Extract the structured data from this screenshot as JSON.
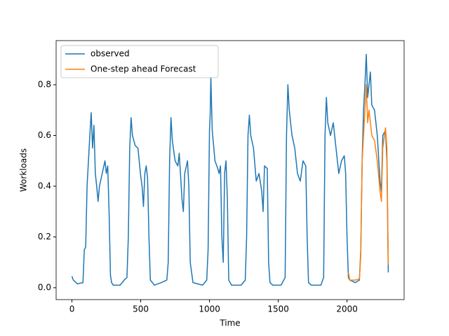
{
  "chart_data": {
    "type": "line",
    "xlabel": "Time",
    "ylabel": "Workloads",
    "xlim": [
      -115,
      2415
    ],
    "ylim": [
      -0.047,
      0.974
    ],
    "xticks": [
      0,
      500,
      1000,
      1500,
      2000
    ],
    "yticks": [
      {
        "value": 0,
        "label": "0.0"
      },
      0.2,
      0.4,
      0.6,
      0.8
    ],
    "legend": "upper left",
    "series": [
      {
        "name": "observed",
        "color": "#1f77b4",
        "x": [
          0,
          10,
          40,
          80,
          90,
          100,
          110,
          120,
          130,
          140,
          150,
          160,
          170,
          180,
          190,
          200,
          220,
          240,
          250,
          260,
          270,
          280,
          288,
          300,
          350,
          380,
          400,
          410,
          420,
          430,
          440,
          460,
          480,
          500,
          510,
          520,
          530,
          540,
          550,
          560,
          570,
          600,
          650,
          690,
          700,
          710,
          720,
          730,
          750,
          770,
          780,
          800,
          810,
          820,
          840,
          850,
          860,
          880,
          950,
          980,
          990,
          1000,
          1005,
          1010,
          1020,
          1040,
          1060,
          1070,
          1080,
          1090,
          1100,
          1110,
          1120,
          1130,
          1140,
          1160,
          1230,
          1260,
          1270,
          1280,
          1290,
          1300,
          1320,
          1340,
          1360,
          1380,
          1390,
          1400,
          1420,
          1430,
          1440,
          1460,
          1520,
          1550,
          1560,
          1570,
          1580,
          1600,
          1620,
          1640,
          1660,
          1680,
          1700,
          1710,
          1720,
          1740,
          1810,
          1830,
          1840,
          1850,
          1860,
          1880,
          1900,
          1920,
          1940,
          1960,
          1980,
          1990,
          2000,
          2010,
          2020,
          2060,
          2090,
          2100,
          2110,
          2120,
          2130,
          2140,
          2150,
          2160,
          2170,
          2180,
          2200,
          2220,
          2240,
          2250,
          2260,
          2280,
          2290,
          2300
        ],
        "values": [
          0.045,
          0.03,
          0.015,
          0.02,
          0.15,
          0.16,
          0.4,
          0.5,
          0.6,
          0.69,
          0.55,
          0.64,
          0.45,
          0.4,
          0.34,
          0.4,
          0.45,
          0.5,
          0.45,
          0.48,
          0.3,
          0.05,
          0.02,
          0.01,
          0.01,
          0.03,
          0.04,
          0.2,
          0.55,
          0.67,
          0.6,
          0.56,
          0.55,
          0.44,
          0.4,
          0.32,
          0.45,
          0.48,
          0.43,
          0.2,
          0.03,
          0.01,
          0.02,
          0.03,
          0.1,
          0.5,
          0.67,
          0.58,
          0.5,
          0.48,
          0.53,
          0.35,
          0.3,
          0.45,
          0.5,
          0.4,
          0.1,
          0.02,
          0.01,
          0.03,
          0.15,
          0.62,
          0.68,
          0.83,
          0.62,
          0.5,
          0.47,
          0.45,
          0.48,
          0.2,
          0.1,
          0.45,
          0.5,
          0.35,
          0.03,
          0.01,
          0.01,
          0.03,
          0.2,
          0.6,
          0.68,
          0.6,
          0.55,
          0.42,
          0.45,
          0.38,
          0.3,
          0.48,
          0.47,
          0.1,
          0.02,
          0.01,
          0.01,
          0.04,
          0.6,
          0.8,
          0.7,
          0.6,
          0.55,
          0.45,
          0.42,
          0.5,
          0.48,
          0.2,
          0.02,
          0.01,
          0.01,
          0.04,
          0.6,
          0.75,
          0.65,
          0.6,
          0.65,
          0.55,
          0.45,
          0.5,
          0.52,
          0.45,
          0.2,
          0.04,
          0.03,
          0.02,
          0.03,
          0.15,
          0.5,
          0.7,
          0.8,
          0.92,
          0.75,
          0.8,
          0.85,
          0.72,
          0.7,
          0.6,
          0.42,
          0.38,
          0.6,
          0.62,
          0.5,
          0.06
        ]
      },
      {
        "name": "One-step ahead Forecast",
        "color": "#ff7f0e",
        "x": [
          2010,
          2020,
          2060,
          2090,
          2100,
          2110,
          2120,
          2130,
          2140,
          2150,
          2160,
          2170,
          2180,
          2200,
          2220,
          2240,
          2250,
          2260,
          2280,
          2290,
          2300
        ],
        "values": [
          0.06,
          0.03,
          0.03,
          0.035,
          0.13,
          0.5,
          0.6,
          0.7,
          0.8,
          0.65,
          0.7,
          0.65,
          0.6,
          0.58,
          0.5,
          0.38,
          0.34,
          0.55,
          0.63,
          0.55,
          0.09
        ]
      }
    ]
  }
}
